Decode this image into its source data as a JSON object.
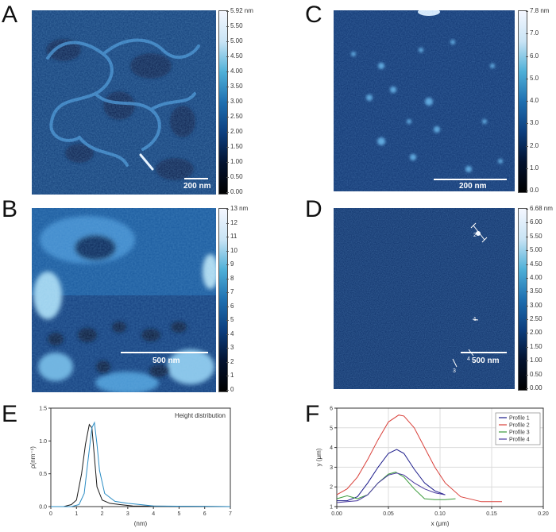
{
  "panels": {
    "A": {
      "letter": "A",
      "scale_label": "200 nm",
      "colorbar": {
        "ticks": [
          "5.92 nm",
          "5.50",
          "5.00",
          "4.50",
          "4.00",
          "3.50",
          "3.00",
          "2.50",
          "2.00",
          "1.50",
          "1.00",
          "0.50",
          "0.00"
        ],
        "colors": [
          "#f4f7ff",
          "#c9e4f5",
          "#4fb0d8",
          "#1e6fb0",
          "#0c3e7e",
          "#03122f",
          "#000000"
        ]
      }
    },
    "B": {
      "letter": "B",
      "scale_label": "500 nm",
      "colorbar": {
        "ticks": [
          "13 nm",
          "12",
          "11",
          "10",
          "9",
          "8",
          "7",
          "6",
          "5",
          "4",
          "3",
          "2",
          "1",
          "0"
        ],
        "colors": [
          "#f4f7ff",
          "#c9e4f5",
          "#4fb0d8",
          "#1e6fb0",
          "#0c3e7e",
          "#03122f",
          "#000000"
        ]
      }
    },
    "C": {
      "letter": "C",
      "scale_label": "200 nm",
      "colorbar": {
        "ticks": [
          "7.8 nm",
          "7.0",
          "6.0",
          "5.0",
          "4.0",
          "3.0",
          "2.0",
          "1.0",
          "0.0"
        ],
        "colors": [
          "#f4f7ff",
          "#c9e4f5",
          "#4fb0d8",
          "#1e6fb0",
          "#0c3e7e",
          "#03122f",
          "#000000"
        ]
      }
    },
    "D": {
      "letter": "D",
      "scale_label": "500 nm",
      "profile_labels": [
        "1",
        "2",
        "3",
        "4"
      ],
      "colorbar": {
        "ticks": [
          "6.68 nm",
          "6.00",
          "5.50",
          "5.00",
          "4.50",
          "4.00",
          "3.50",
          "3.00",
          "2.50",
          "2.00",
          "1.50",
          "1.00",
          "0.50",
          "0.00"
        ],
        "colors": [
          "#f4f7ff",
          "#c9e4f5",
          "#4fb0d8",
          "#1e6fb0",
          "#0c3e7e",
          "#03122f",
          "#000000"
        ]
      }
    },
    "E": {
      "letter": "E"
    },
    "F": {
      "letter": "F"
    }
  },
  "chart_data": [
    {
      "panel": "E",
      "type": "line",
      "title": "Height distribution",
      "xlabel": "(nm)",
      "ylabel": "ρ(nm⁻¹)",
      "xlim": [
        0,
        7
      ],
      "ylim": [
        0,
        1.5
      ],
      "xticks": [
        0,
        1,
        2,
        3,
        4,
        5,
        6,
        7
      ],
      "yticks": [
        0,
        0.5,
        1,
        1.5
      ],
      "ytick_labels": [
        "0.0",
        "0.5",
        "1.0",
        "1.5"
      ],
      "grid": false,
      "series": [
        {
          "color": "#1a1a1a",
          "x": [
            0,
            0.5,
            0.8,
            1.0,
            1.2,
            1.35,
            1.5,
            1.6,
            1.7,
            1.8,
            2.0,
            2.3,
            2.7,
            3.2,
            7
          ],
          "y": [
            0,
            0.0,
            0.03,
            0.1,
            0.5,
            0.95,
            1.25,
            1.2,
            0.75,
            0.3,
            0.1,
            0.05,
            0.03,
            0.01,
            0
          ]
        },
        {
          "color": "#2a8cc4",
          "x": [
            0,
            0.8,
            1.1,
            1.3,
            1.45,
            1.6,
            1.7,
            1.8,
            1.9,
            2.1,
            2.5,
            3.0,
            3.5,
            4.0,
            7
          ],
          "y": [
            0,
            0.0,
            0.03,
            0.2,
            0.7,
            1.2,
            1.28,
            0.95,
            0.55,
            0.2,
            0.08,
            0.05,
            0.03,
            0.01,
            0
          ]
        }
      ]
    },
    {
      "panel": "F",
      "type": "line",
      "xlabel": "x (μm)",
      "ylabel": "y (μm)",
      "xlim": [
        0,
        0.2
      ],
      "ylim": [
        1,
        6
      ],
      "xticks": [
        0,
        0.05,
        0.1,
        0.15,
        0.2
      ],
      "xtick_labels": [
        "0.00",
        "0.05",
        "0.10",
        "0.15",
        "0.20"
      ],
      "yticks": [
        1,
        2,
        3,
        4,
        5,
        6
      ],
      "grid": true,
      "legend": "top-right",
      "series": [
        {
          "name": "Profile 1",
          "color": "#1b1b8a",
          "x": [
            0,
            0.01,
            0.02,
            0.03,
            0.04,
            0.05,
            0.058,
            0.065,
            0.075,
            0.085,
            0.095,
            0.105
          ],
          "y": [
            1.3,
            1.3,
            1.5,
            2.2,
            3.0,
            3.7,
            3.9,
            3.7,
            2.9,
            2.2,
            1.8,
            1.6
          ]
        },
        {
          "name": "Profile 2",
          "color": "#d9403a",
          "x": [
            0,
            0.01,
            0.02,
            0.03,
            0.04,
            0.05,
            0.06,
            0.065,
            0.075,
            0.085,
            0.095,
            0.105,
            0.12,
            0.14,
            0.16
          ],
          "y": [
            1.6,
            1.9,
            2.5,
            3.4,
            4.4,
            5.3,
            5.65,
            5.6,
            5.0,
            4.0,
            3.0,
            2.2,
            1.5,
            1.25,
            1.25
          ]
        },
        {
          "name": "Profile 3",
          "color": "#3a9a3a",
          "x": [
            0,
            0.01,
            0.02,
            0.03,
            0.04,
            0.05,
            0.057,
            0.065,
            0.075,
            0.085,
            0.095,
            0.105,
            0.115
          ],
          "y": [
            1.4,
            1.55,
            1.4,
            1.6,
            2.2,
            2.65,
            2.75,
            2.5,
            1.9,
            1.4,
            1.35,
            1.35,
            1.4
          ]
        },
        {
          "name": "Profile 4",
          "color": "#4a3aa0",
          "x": [
            0,
            0.01,
            0.02,
            0.03,
            0.04,
            0.05,
            0.058,
            0.065,
            0.075,
            0.085,
            0.095,
            0.105
          ],
          "y": [
            1.2,
            1.25,
            1.3,
            1.6,
            2.2,
            2.6,
            2.7,
            2.6,
            2.2,
            1.9,
            1.7,
            1.6
          ]
        }
      ]
    }
  ]
}
